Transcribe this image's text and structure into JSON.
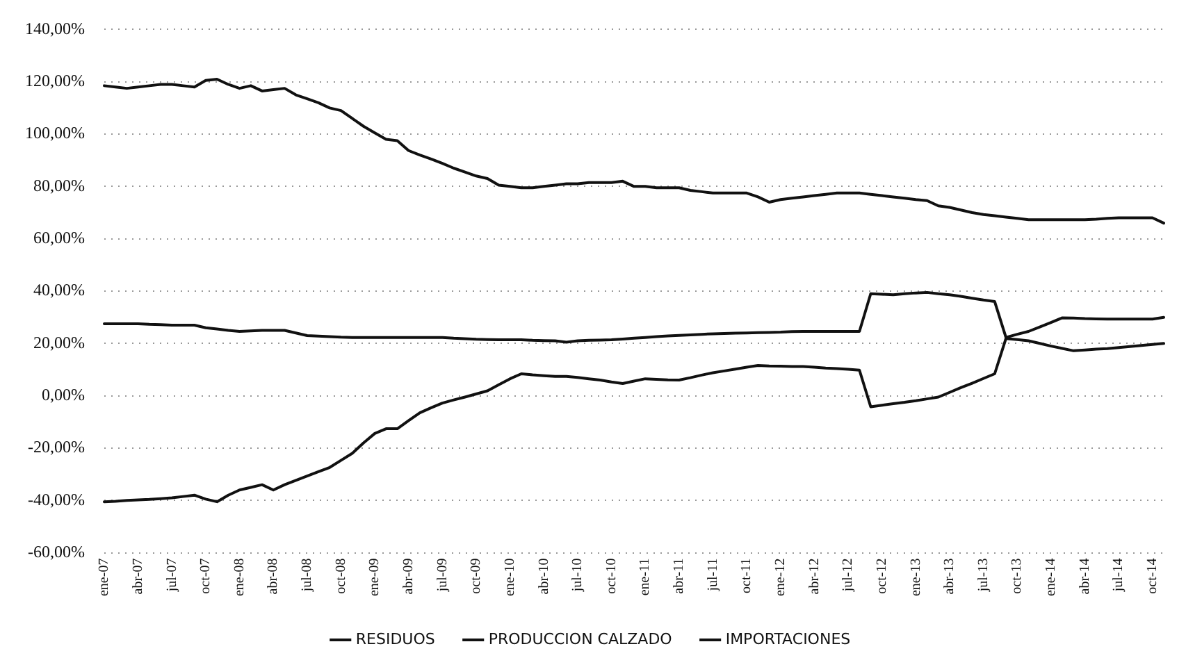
{
  "chart_data": {
    "type": "line",
    "categories": [
      "ene-07",
      null,
      null,
      "abr-07",
      null,
      null,
      "jul-07",
      null,
      null,
      "oct-07",
      null,
      null,
      "ene-08",
      null,
      null,
      "abr-08",
      null,
      null,
      "jul-08",
      null,
      null,
      "oct-08",
      null,
      null,
      "ene-09",
      null,
      null,
      "abr-09",
      null,
      null,
      "jul-09",
      null,
      null,
      "oct-09",
      null,
      null,
      "ene-10",
      null,
      null,
      "abr-10",
      null,
      null,
      "jul-10",
      null,
      null,
      "oct-10",
      null,
      null,
      "ene-11",
      null,
      null,
      "abr-11",
      null,
      null,
      "jul-11",
      null,
      null,
      "oct-11",
      null,
      null,
      "ene-12",
      null,
      null,
      "abr-12",
      null,
      null,
      "jul-12",
      null,
      null,
      "oct-12",
      null,
      null,
      "ene-13",
      null,
      null,
      "abr-13",
      null,
      null,
      "jul-13",
      null,
      null,
      "oct-13",
      null,
      null,
      "ene-14",
      null,
      null,
      "abr-14",
      null,
      null,
      "jul-14",
      null,
      null,
      "oct-14",
      null
    ],
    "series": [
      {
        "name": "RESIDUOS",
        "color": "#111111",
        "values": [
          118.5,
          118,
          117.5,
          118,
          118.5,
          119,
          119,
          118.5,
          118,
          120.5,
          121,
          119,
          117.5,
          118.5,
          116.5,
          117,
          117.5,
          115,
          113.5,
          112,
          110,
          109,
          106,
          103,
          100.5,
          98,
          97.5,
          93.7,
          92,
          90.5,
          88.8,
          87,
          85.5,
          84,
          83,
          80.5,
          80,
          79.5,
          79.5,
          80,
          80.5,
          81,
          81,
          81.5,
          81.5,
          81.5,
          82,
          80,
          80,
          79.5,
          79.5,
          79.5,
          78.5,
          78,
          77.5,
          77.5,
          77.5,
          77.5,
          76,
          74,
          75,
          75.5,
          76,
          76.5,
          77,
          77.5,
          77.5,
          77.5,
          77,
          76.5,
          76,
          75.5,
          75,
          74.6,
          72.6,
          72,
          71,
          70,
          69.3,
          68.8,
          68.3,
          67.8,
          67.3,
          67.3,
          67.3,
          67.3,
          67.3,
          67.3,
          67.5,
          67.8,
          68,
          68,
          68,
          68,
          66
        ]
      },
      {
        "name": "PRODUCCION CALZADO",
        "color": "#111111",
        "values": [
          27.5,
          27.5,
          27.5,
          27.5,
          27.3,
          27.2,
          27,
          27,
          27,
          26,
          25.5,
          25,
          24.6,
          24.8,
          25,
          25,
          25,
          24,
          23,
          22.8,
          22.6,
          22.4,
          22.3,
          22.3,
          22.3,
          22.3,
          22.3,
          22.3,
          22.3,
          22.3,
          22.3,
          22,
          21.8,
          21.6,
          21.5,
          21.4,
          21.4,
          21.4,
          21.2,
          21.1,
          21,
          20.5,
          21,
          21.2,
          21.3,
          21.4,
          21.7,
          22,
          22.3,
          22.6,
          22.9,
          23.1,
          23.3,
          23.5,
          23.7,
          23.8,
          23.9,
          24,
          24.1,
          24.2,
          24.3,
          24.5,
          24.6,
          24.6,
          24.6,
          24.6,
          24.6,
          24.6,
          39,
          38.8,
          38.6,
          39,
          39.3,
          39.5,
          39,
          38.6,
          38,
          37.3,
          36.6,
          36,
          22.3,
          23.5,
          24.6,
          26.3,
          28,
          29.8,
          29.7,
          29.5,
          29.4,
          29.3,
          29.3,
          29.3,
          29.3,
          29.3,
          30
        ]
      },
      {
        "name": "IMPORTACIONES",
        "color": "#111111",
        "values": [
          -40.5,
          -40.3,
          -40,
          -39.8,
          -39.6,
          -39.3,
          -39,
          -38.5,
          -38,
          -39.5,
          -40.5,
          -38,
          -36,
          -35,
          -34,
          -36,
          -34,
          -32.3,
          -30.7,
          -29,
          -27.4,
          -24.7,
          -22,
          -18,
          -14.4,
          -12.6,
          -12.6,
          -9.5,
          -6.5,
          -4.6,
          -2.8,
          -1.6,
          -0.5,
          0.7,
          1.9,
          4.2,
          6.5,
          8.4,
          8,
          7.7,
          7.4,
          7.4,
          7,
          6.5,
          6,
          5.3,
          4.7,
          5.6,
          6.5,
          6.3,
          6.1,
          6,
          6.9,
          7.9,
          8.8,
          9.5,
          10.2,
          10.9,
          11.6,
          11.4,
          11.3,
          11.2,
          11.2,
          10.9,
          10.6,
          10.4,
          10.1,
          9.8,
          -4.2,
          -3.6,
          -3,
          -2.5,
          -1.9,
          -1.2,
          -0.5,
          1.3,
          3.1,
          4.8,
          6.6,
          8.4,
          21.9,
          21.5,
          21,
          20,
          19,
          18.1,
          17.2,
          17.5,
          17.8,
          18,
          18.4,
          18.8,
          19.2,
          19.6,
          20
        ]
      }
    ],
    "ylim": [
      -60,
      140
    ],
    "yticks": [
      {
        "value": -60,
        "label": "-60,00%"
      },
      {
        "value": -40,
        "label": "-40,00%"
      },
      {
        "value": -20,
        "label": "-20,00%"
      },
      {
        "value": 0,
        "label": "0,00%"
      },
      {
        "value": 20,
        "label": "20,00%"
      },
      {
        "value": 40,
        "label": "40,00%"
      },
      {
        "value": 60,
        "label": "60,00%"
      },
      {
        "value": 80,
        "label": "80,00%"
      },
      {
        "value": 100,
        "label": "100,00%"
      },
      {
        "value": 120,
        "label": "120,00%"
      },
      {
        "value": 140,
        "label": "140,00%"
      }
    ],
    "grid": "y",
    "legend": "bottom",
    "marker": "none",
    "line_style": "solid"
  }
}
